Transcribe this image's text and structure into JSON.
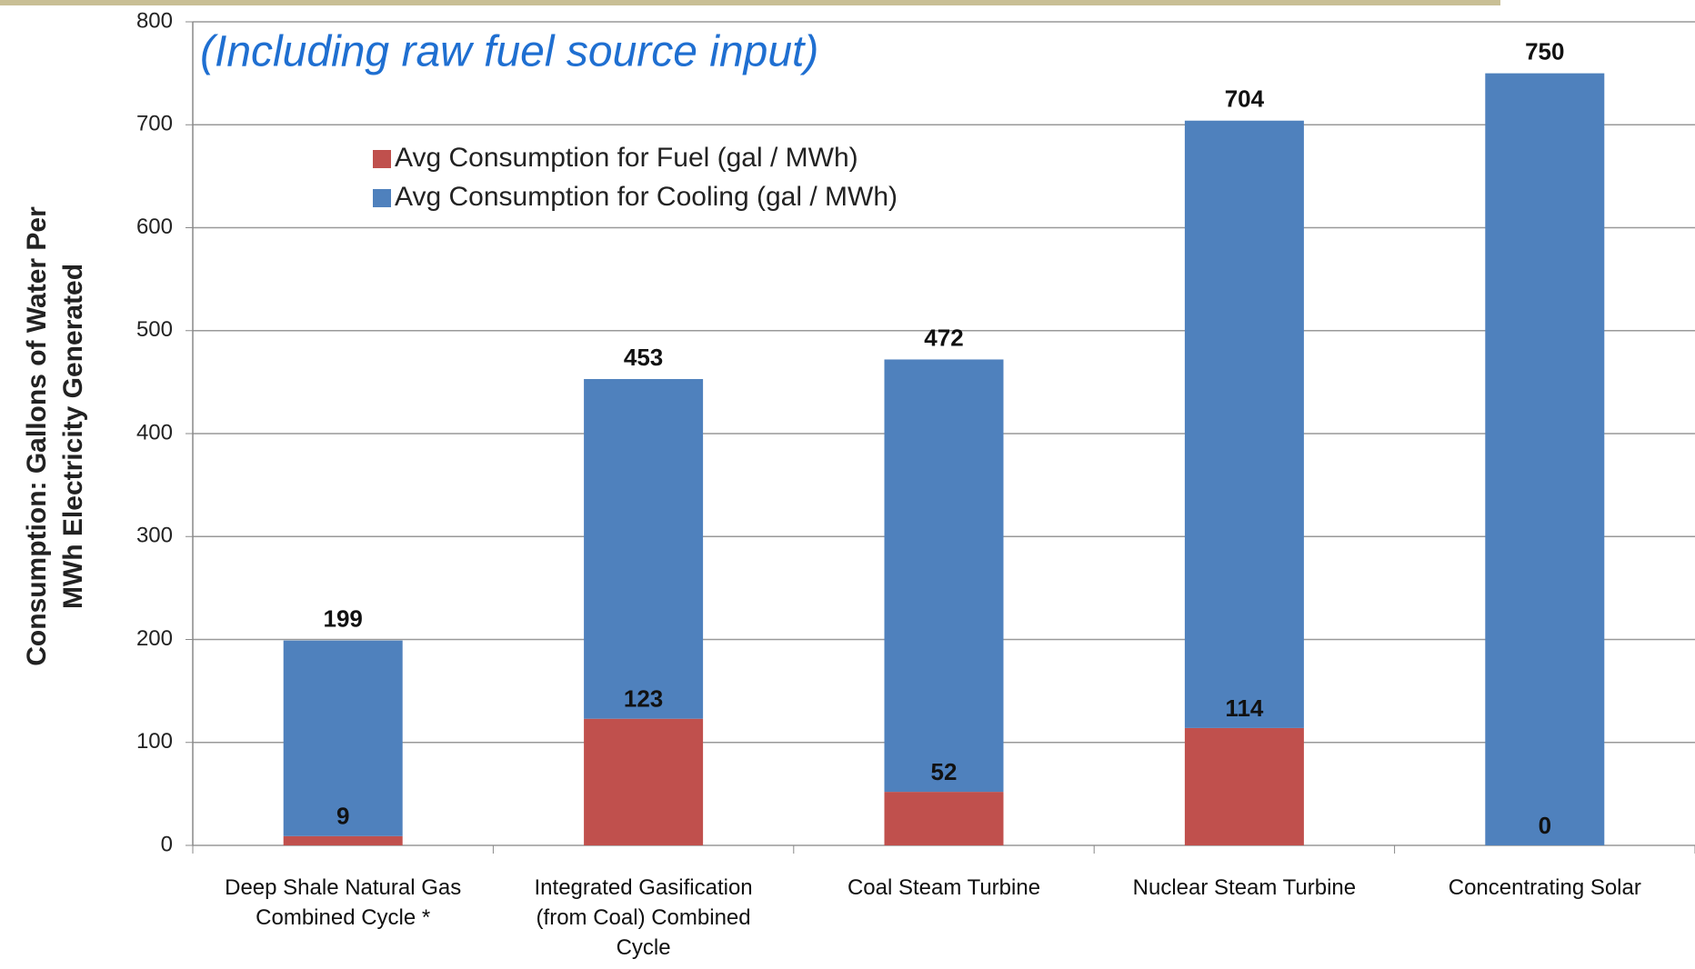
{
  "chart_data": {
    "type": "stacked-bar",
    "title": "(Including raw fuel source input)",
    "y_label": [
      "Consumption: Gallons of Water Per",
      "MWh Electricity Generated"
    ],
    "categories": [
      "Deep Shale Natural Gas Combined Cycle *",
      "Integrated Gasification (from Coal) Combined Cycle",
      "Coal Steam Turbine",
      "Nuclear Steam Turbine",
      "Concentrating Solar"
    ],
    "series": [
      {
        "name": "Avg Consumption for Fuel (gal / MWh)",
        "color": "#c0504d",
        "values": [
          9,
          123,
          52,
          114,
          0
        ]
      },
      {
        "name": "Avg Consumption for Cooling (gal / MWh)",
        "color": "#4f81bd",
        "values": [
          190,
          330,
          420,
          590,
          750
        ]
      }
    ],
    "totals": [
      199,
      453,
      472,
      704,
      750
    ],
    "ylim": [
      0,
      800
    ],
    "yticks": [
      0,
      100,
      200,
      300,
      400,
      500,
      600,
      700,
      800
    ],
    "grid": true
  }
}
